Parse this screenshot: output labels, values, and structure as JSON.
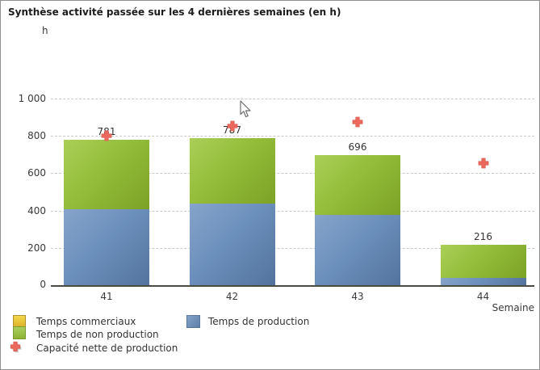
{
  "title": "Synthèse activité passée sur les 4 dernières semaines (en h)",
  "y_axis": {
    "unit": "h",
    "zero_label": "0",
    "ticks": [
      [
        200,
        "200"
      ],
      [
        400,
        "400"
      ],
      [
        600,
        "600"
      ],
      [
        800,
        "800"
      ],
      [
        1000,
        "1 000"
      ]
    ],
    "max": 1000
  },
  "x_axis": {
    "label": "Semaine"
  },
  "chart_data": {
    "type": "bar",
    "stacked": true,
    "title": "Synthèse activité passée sur les 4 dernières semaines (en h)",
    "xlabel": "Semaine",
    "ylabel": "h",
    "ylim": [
      0,
      1000
    ],
    "grid": "horizontal-dashed",
    "legend_position": "bottom",
    "categories": [
      "41",
      "42",
      "43",
      "44"
    ],
    "series": [
      {
        "name": "Temps de production",
        "color": "#6c90bc",
        "values": [
          408,
          438,
          377,
          40
        ]
      },
      {
        "name": "Temps de non production",
        "color": "#94bd3a",
        "values": [
          373,
          349,
          319,
          176
        ]
      },
      {
        "name": "Temps commerciaux",
        "color": "#ecc935",
        "values": [
          0,
          0,
          0,
          0
        ]
      }
    ],
    "totals_labels": [
      "781",
      "787",
      "696",
      "216"
    ],
    "markers": {
      "name": "Capacité nette de production",
      "color": "#ed685c",
      "values": [
        805,
        855,
        880,
        660
      ]
    }
  },
  "legend": {
    "items": [
      {
        "swatch": "yellow-square",
        "label": "Temps commerciaux"
      },
      {
        "swatch": "green-square",
        "label": "Temps de non production"
      },
      {
        "swatch": "red-cross",
        "label": "Capacité nette de production"
      },
      {
        "swatch": "blue-square",
        "label": "Temps de production"
      }
    ]
  }
}
